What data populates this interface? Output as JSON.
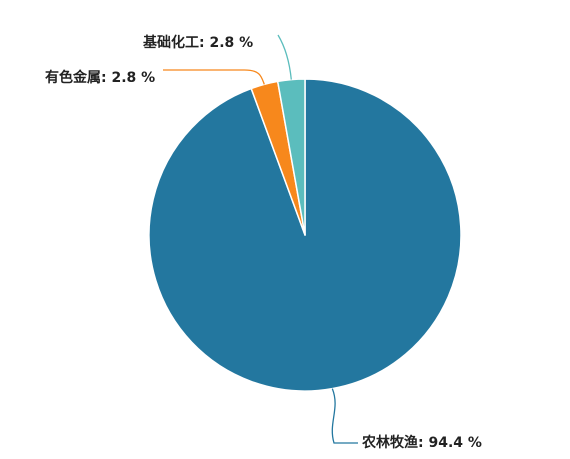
{
  "chart_data": {
    "type": "pie",
    "title": "",
    "slices": [
      {
        "label": "农林牧渔",
        "value": 94.4,
        "value_text": "94.4 %",
        "color": "#23779f"
      },
      {
        "label": "有色金属",
        "value": 2.8,
        "value_text": "2.8 %",
        "color": "#f7881c"
      },
      {
        "label": "基础化工",
        "value": 2.8,
        "value_text": "2.8 %",
        "color": "#5bbdbd"
      }
    ],
    "label_separator": ": ",
    "slice_border_color": "#ffffff"
  }
}
